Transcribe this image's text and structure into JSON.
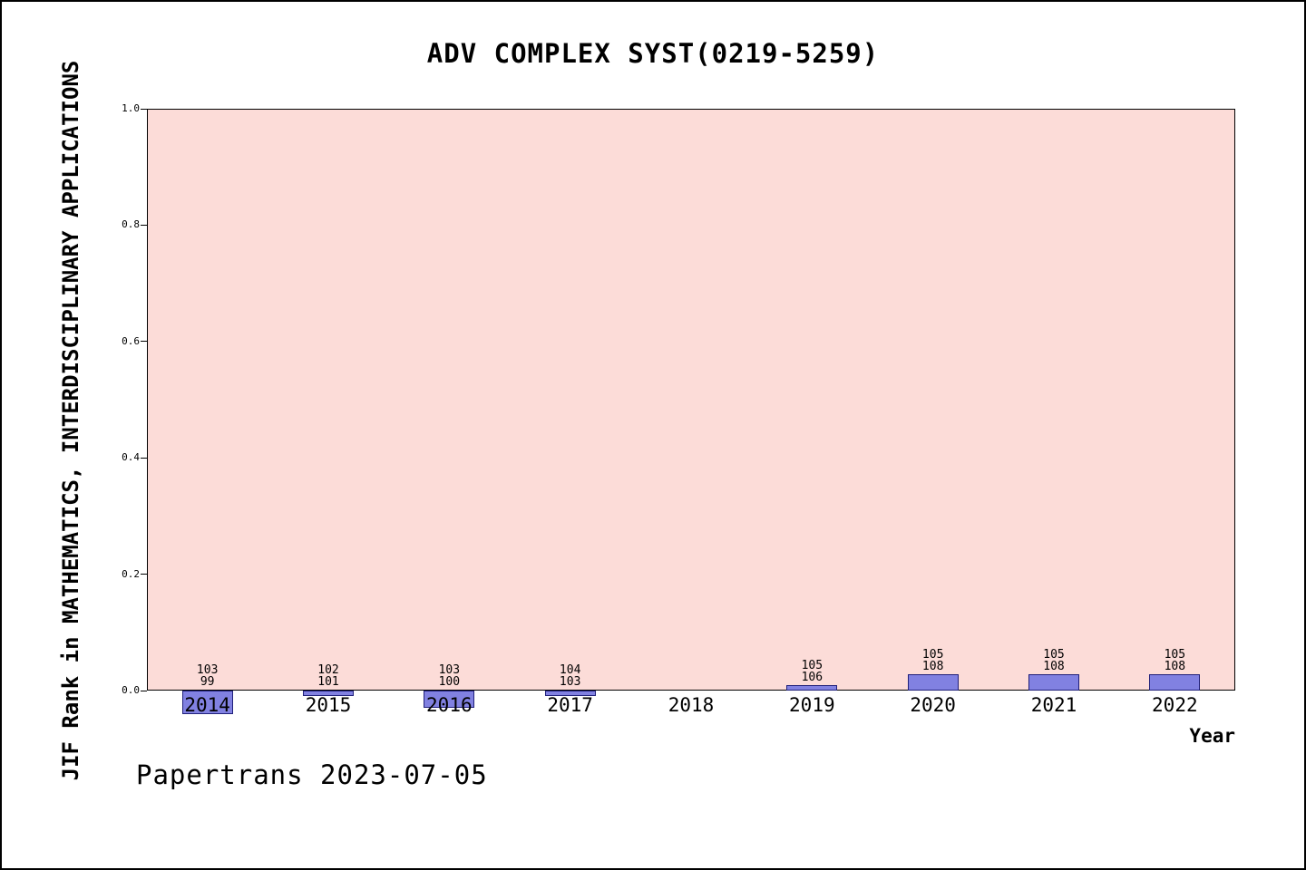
{
  "footer": {
    "text": "Papertrans 2023-07-05"
  },
  "chart_data": {
    "type": "bar",
    "title": "ADV COMPLEX SYST(0219-5259)",
    "xlabel": "Year",
    "ylabel": "JIF Rank in MATHEMATICS, INTERDISCIPLINARY APPLICATIONS",
    "ylim": [
      0.0,
      1.0
    ],
    "yticks": [
      0.0,
      0.2,
      0.4,
      0.6,
      0.8,
      1.0
    ],
    "grid": false,
    "legend": "none",
    "plot_bg_color": "#fcdcd8",
    "bar_color": "#8181e1",
    "categories": [
      "2014",
      "2015",
      "2016",
      "2017",
      "2018",
      "2019",
      "2020",
      "2021",
      "2022"
    ],
    "bars": [
      {
        "year": "2014",
        "label_top": "103",
        "label_bottom": "99",
        "value": -0.0404
      },
      {
        "year": "2015",
        "label_top": "102",
        "label_bottom": "101",
        "value": -0.0099
      },
      {
        "year": "2016",
        "label_top": "103",
        "label_bottom": "100",
        "value": -0.03
      },
      {
        "year": "2017",
        "label_top": "104",
        "label_bottom": "103",
        "value": -0.0097
      },
      {
        "year": "2018",
        "label_top": "",
        "label_bottom": "",
        "value": 0
      },
      {
        "year": "2019",
        "label_top": "105",
        "label_bottom": "106",
        "value": 0.0094
      },
      {
        "year": "2020",
        "label_top": "105",
        "label_bottom": "108",
        "value": 0.0278
      },
      {
        "year": "2021",
        "label_top": "105",
        "label_bottom": "108",
        "value": 0.0278
      },
      {
        "year": "2022",
        "label_top": "105",
        "label_bottom": "108",
        "value": 0.0278
      }
    ]
  }
}
